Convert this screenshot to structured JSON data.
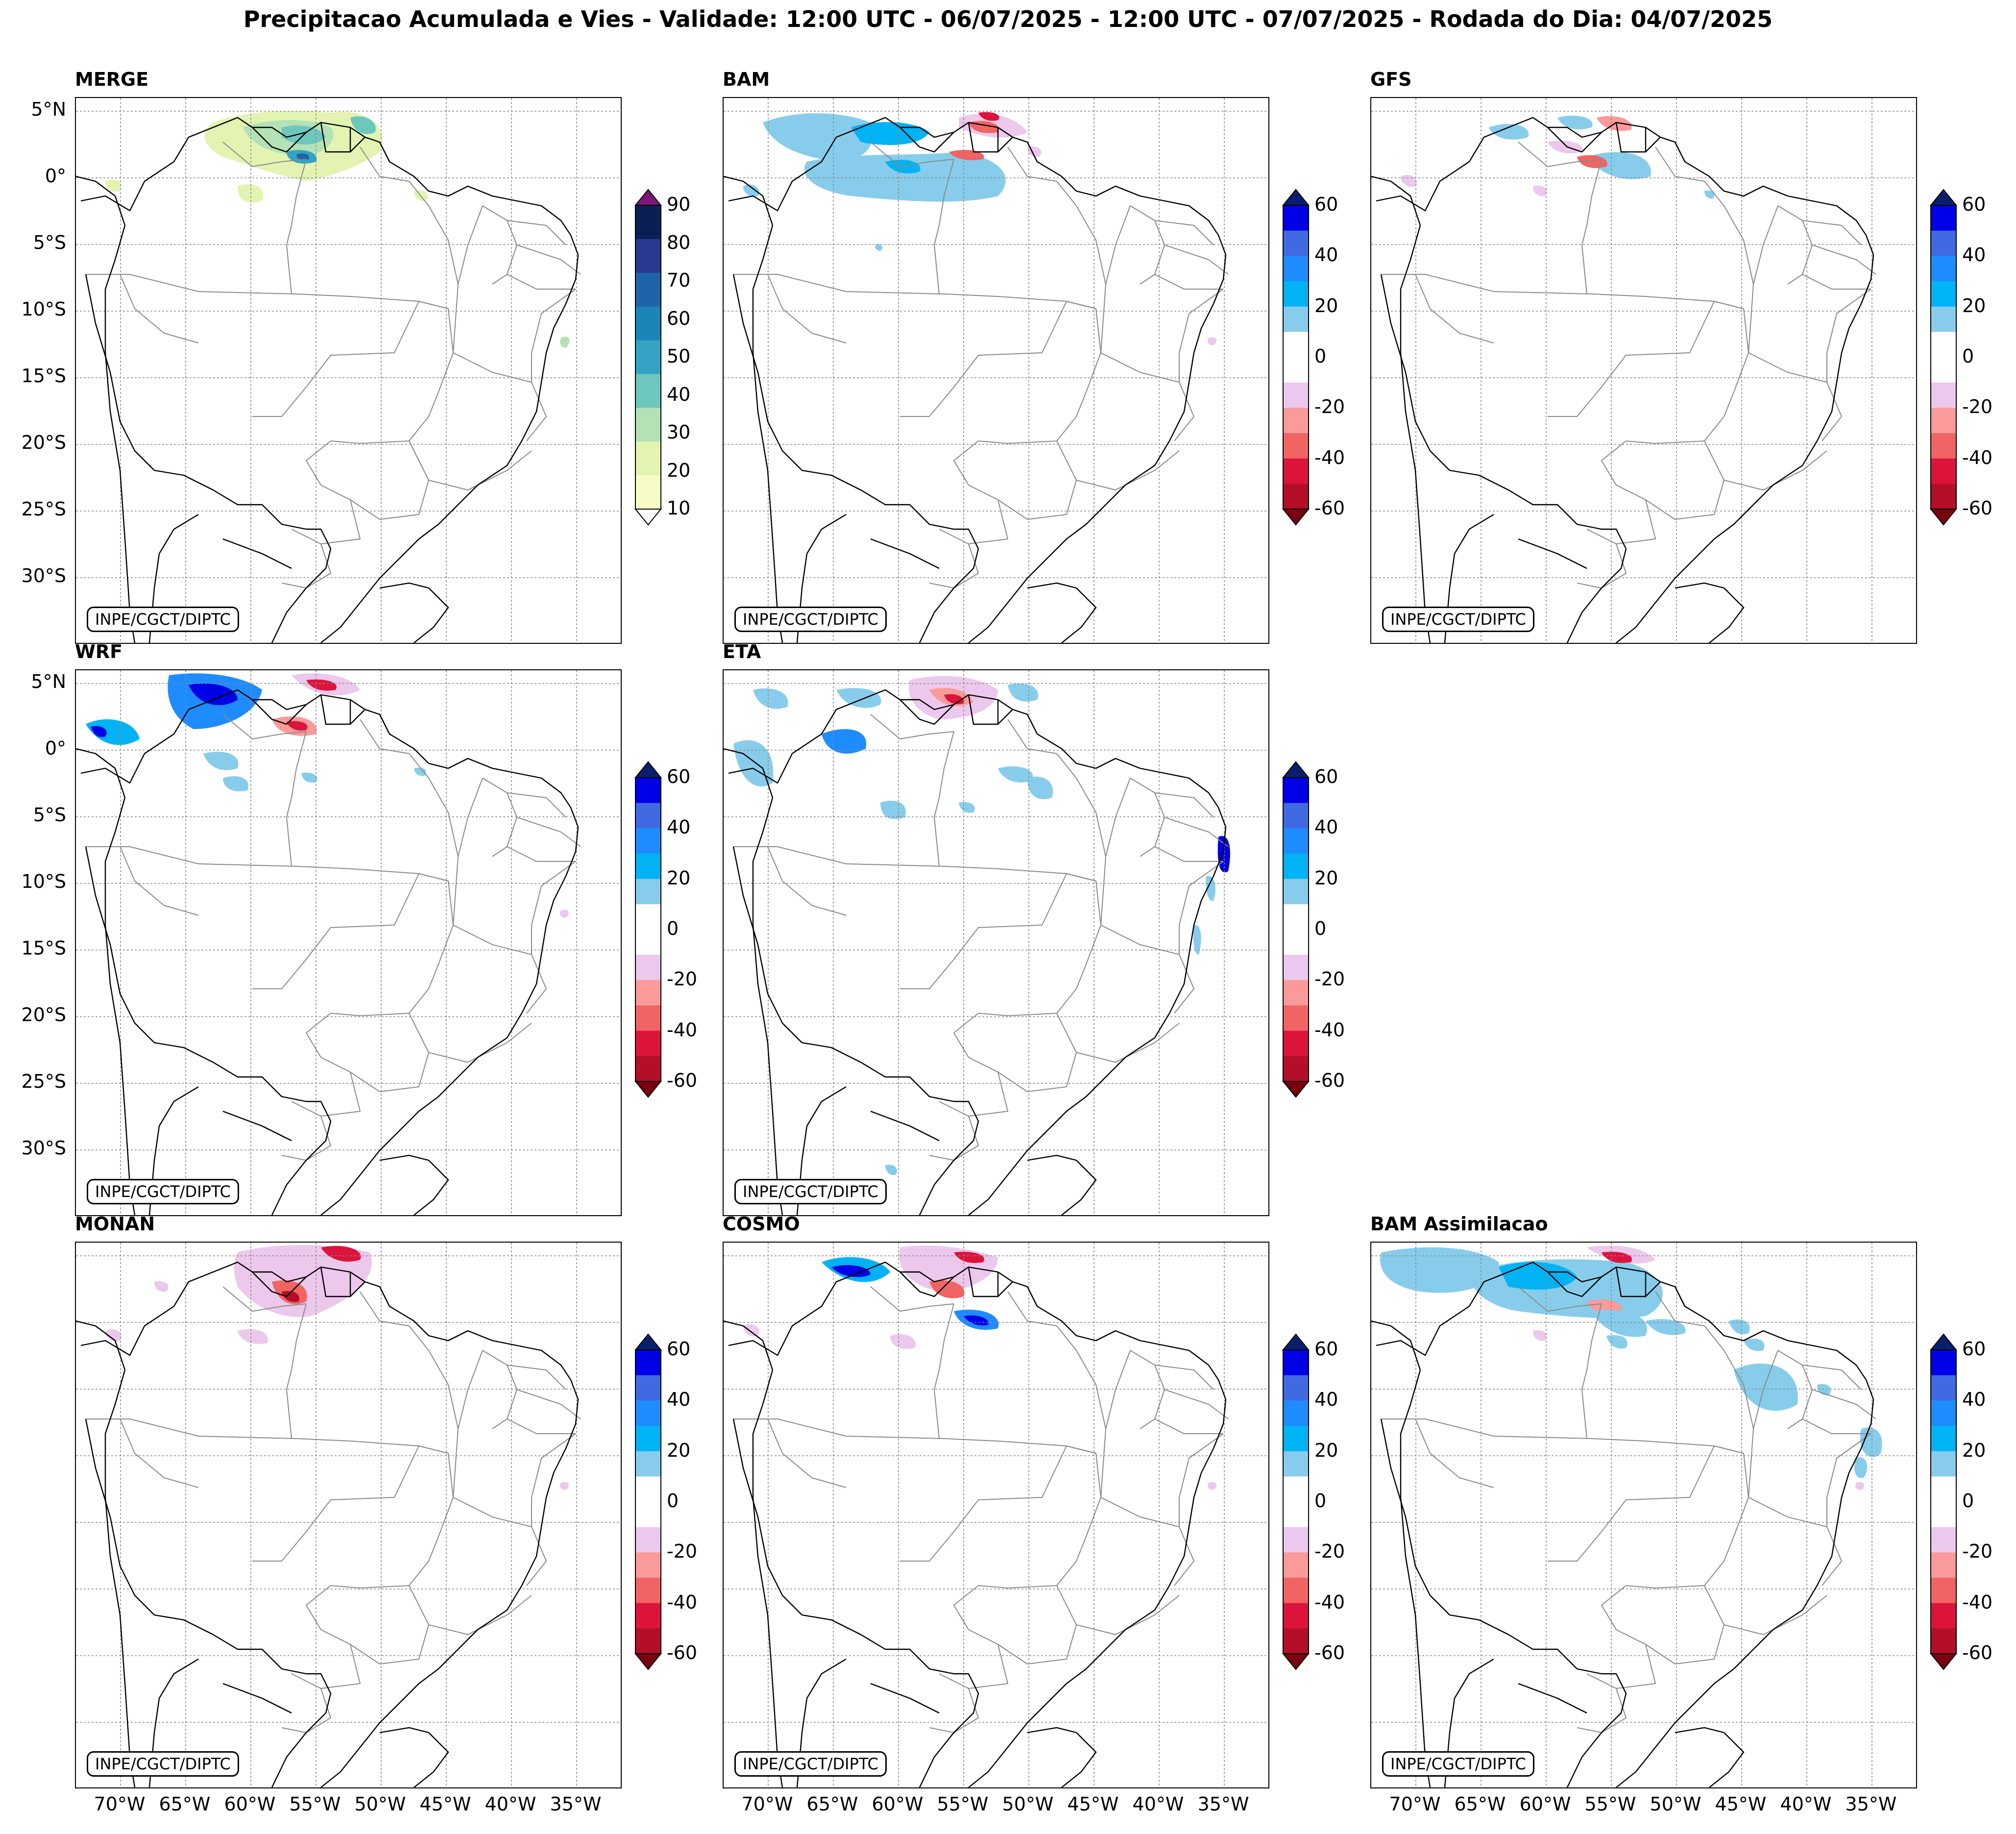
{
  "title": "Precipitacao Acumulada e Vies - Validade: 12:00 UTC - 06/07/2025 - 12:00 UTC - 07/07/2025 - Rodada do Dia: 04/07/2025",
  "credit": "INPE/CGCT/DIPTC",
  "lat_labels": [
    "5°N",
    "0°",
    "5°S",
    "10°S",
    "15°S",
    "20°S",
    "25°S",
    "30°S"
  ],
  "lon_labels": [
    "70°W",
    "65°W",
    "60°W",
    "55°W",
    "50°W",
    "45°W",
    "40°W",
    "35°W"
  ],
  "merge_colorbar": {
    "labels": [
      "90",
      "80",
      "70",
      "60",
      "50",
      "40",
      "30",
      "20",
      "10"
    ],
    "colors": [
      "#0c1f55",
      "#2a3a93",
      "#1f64a8",
      "#1b85b8",
      "#34a3c3",
      "#6dc7bd",
      "#b4e1b5",
      "#e2f3b2",
      "#f7fcc6"
    ],
    "extend_high": "#7a177a"
  },
  "bias_colorbar": {
    "labels": [
      "60",
      "40",
      "20",
      "0",
      "-20",
      "-40",
      "-60"
    ],
    "colors": [
      "#0000e6",
      "#4169e1",
      "#1e8cff",
      "#00b3f5",
      "#87cdeb",
      "#ffffff",
      "#ffffff",
      "#ecc8ec",
      "#fa9a9a",
      "#f06464",
      "#dc143c",
      "#b40e28"
    ],
    "extend_high": "#0a1e6e",
    "extend_low": "#7a0010"
  },
  "panels": [
    {
      "id": "merge",
      "title": "MERGE"
    },
    {
      "id": "bam",
      "title": "BAM"
    },
    {
      "id": "gfs",
      "title": "GFS"
    },
    {
      "id": "wrf",
      "title": "WRF"
    },
    {
      "id": "eta",
      "title": "ETA"
    },
    {
      "id": "monan",
      "title": "MONAN"
    },
    {
      "id": "cosmo",
      "title": "COSMO"
    },
    {
      "id": "bamassim",
      "title": "BAM Assimilacao"
    }
  ]
}
